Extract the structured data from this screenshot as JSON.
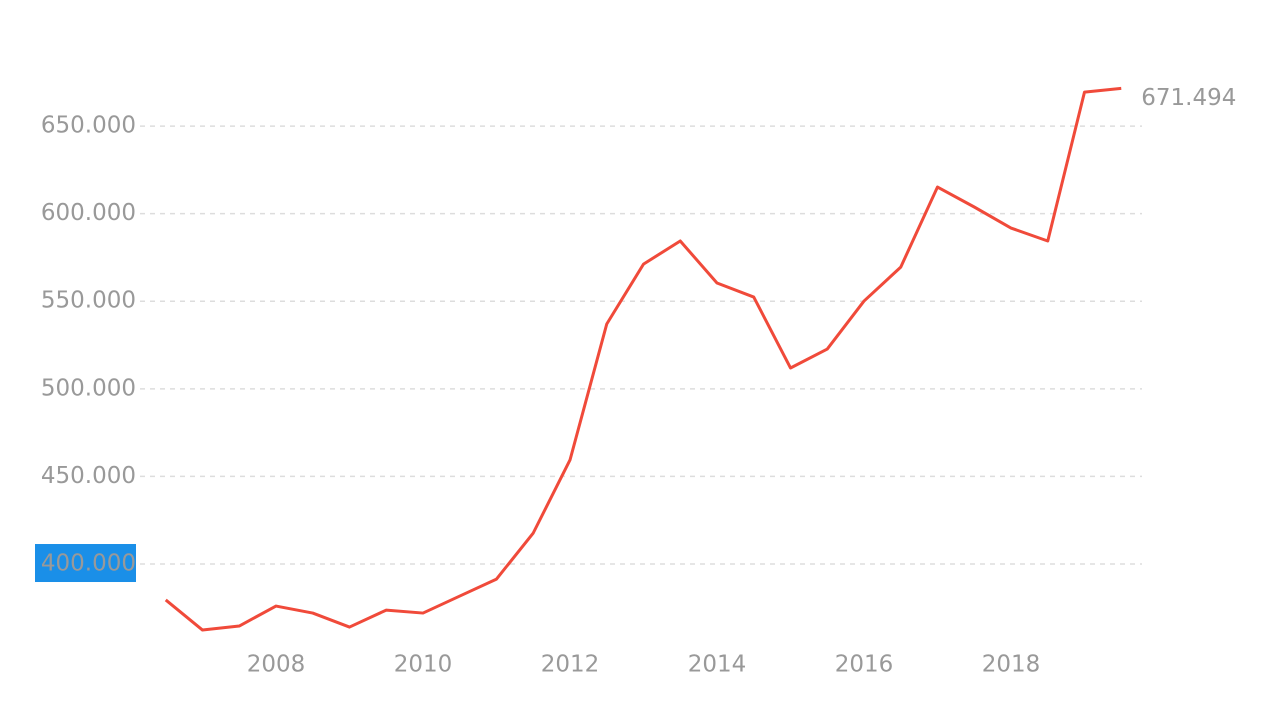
{
  "chart_data": {
    "type": "line",
    "x": [
      2006.5,
      2007,
      2007.5,
      2008,
      2008.5,
      2009,
      2009.5,
      2010,
      2010.5,
      2011,
      2011.5,
      2012,
      2012.5,
      2013,
      2013.5,
      2014,
      2014.5,
      2015,
      2015.5,
      2016,
      2016.5,
      2017,
      2017.5,
      2018,
      2018.5,
      2019,
      2019.5
    ],
    "values": [
      379500,
      362300,
      364600,
      376000,
      372000,
      364000,
      373700,
      372000,
      381700,
      391400,
      417700,
      459400,
      537000,
      571200,
      584400,
      560400,
      552400,
      511900,
      522700,
      550100,
      569500,
      615200,
      603800,
      591800,
      584400,
      669400,
      671494
    ],
    "value_labels": [
      null,
      null,
      null,
      null,
      null,
      null,
      null,
      null,
      null,
      null,
      null,
      null,
      null,
      null,
      null,
      null,
      null,
      null,
      null,
      null,
      null,
      null,
      null,
      null,
      null,
      null,
      "671.494"
    ],
    "color": "#f04a3a",
    "xlim": [
      2006,
      2020
    ],
    "xticks": [
      2008,
      2010,
      2012,
      2014,
      2016,
      2018
    ],
    "ylim": [
      350000,
      690000
    ],
    "yticks": [
      {
        "value": 400000,
        "label": "400.000"
      },
      {
        "value": 450000,
        "label": "450.000"
      },
      {
        "value": 500000,
        "label": "500.000"
      },
      {
        "value": 550000,
        "label": "550.000"
      },
      {
        "value": 600000,
        "label": "600.000"
      },
      {
        "value": 650000,
        "label": "650.000"
      }
    ],
    "grid": true
  }
}
